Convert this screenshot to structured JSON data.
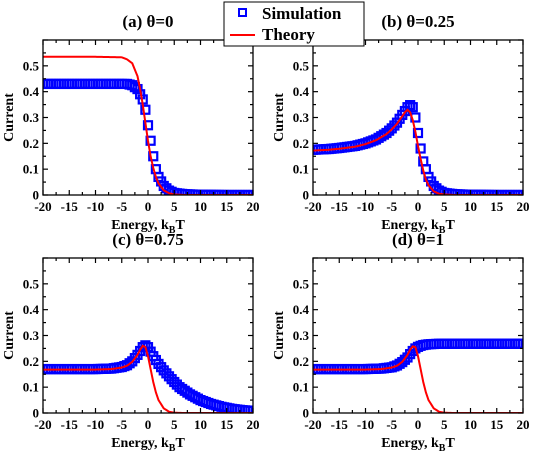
{
  "legend": {
    "entries": [
      {
        "label": "Simulation",
        "marker": "open-square",
        "color": "#0000ff"
      },
      {
        "label": "Theory",
        "marker": "line",
        "color": "#ff0000"
      }
    ]
  },
  "chart_data": [
    {
      "type": "line",
      "title": "(a) θ=0",
      "xlabel": "Energy, k",
      "xlabel_sub": "B",
      "xlabel_tail": "T",
      "ylabel": "Current",
      "xlim": [
        -20,
        20
      ],
      "ylim": [
        0,
        0.6
      ],
      "xticks": [
        -20,
        -15,
        -10,
        -5,
        0,
        5,
        10,
        15,
        20
      ],
      "yticks": [
        0,
        0.1,
        0.2,
        0.3,
        0.4,
        0.5
      ],
      "ytick_labels": [
        "0",
        "0.1",
        "0.2",
        "0.3",
        "0.4",
        "0.5"
      ],
      "series": [
        {
          "name": "Simulation",
          "color": "#0000ff",
          "x": [
            -20,
            -15,
            -10,
            -5,
            -4,
            -3,
            -2,
            -1,
            -0.5,
            0,
            0.5,
            1,
            1.5,
            2,
            3,
            4,
            5,
            7,
            10,
            15,
            20
          ],
          "y": [
            0.43,
            0.43,
            0.43,
            0.43,
            0.43,
            0.425,
            0.41,
            0.37,
            0.33,
            0.27,
            0.21,
            0.15,
            0.1,
            0.07,
            0.035,
            0.017,
            0.008,
            0.003,
            0.001,
            0,
            0
          ]
        },
        {
          "name": "Theory",
          "color": "#ff0000",
          "x": [
            -20,
            -15,
            -10,
            -5,
            -4,
            -3,
            -2,
            -1.5,
            -1,
            -0.5,
            0,
            0.5,
            1,
            1.5,
            2,
            3,
            4,
            5,
            7,
            10,
            15,
            20
          ],
          "y": [
            0.535,
            0.535,
            0.535,
            0.533,
            0.525,
            0.51,
            0.46,
            0.41,
            0.35,
            0.28,
            0.21,
            0.15,
            0.105,
            0.07,
            0.045,
            0.018,
            0.007,
            0.002,
            0,
            0,
            0,
            0
          ]
        }
      ]
    },
    {
      "type": "line",
      "title": "(b) θ=0.25",
      "xlabel": "Energy, k",
      "xlabel_sub": "B",
      "xlabel_tail": "T",
      "ylabel": "Current",
      "xlim": [
        -20,
        20
      ],
      "ylim": [
        0,
        0.6
      ],
      "xticks": [
        -20,
        -15,
        -10,
        -5,
        0,
        5,
        10,
        15,
        20
      ],
      "yticks": [
        0,
        0.1,
        0.2,
        0.3,
        0.4,
        0.5
      ],
      "ytick_labels": [
        "0",
        "0.1",
        "0.2",
        "0.3",
        "0.4",
        "0.5"
      ],
      "series": [
        {
          "name": "Simulation",
          "color": "#0000ff",
          "x": [
            -20,
            -17,
            -15,
            -12,
            -10,
            -8,
            -6,
            -5,
            -4,
            -3,
            -2,
            -1.5,
            -1,
            -0.5,
            0,
            0.5,
            1,
            2,
            3,
            4,
            5,
            7,
            10,
            15,
            20
          ],
          "y": [
            0.175,
            0.178,
            0.182,
            0.19,
            0.2,
            0.215,
            0.24,
            0.258,
            0.28,
            0.31,
            0.34,
            0.348,
            0.34,
            0.3,
            0.24,
            0.18,
            0.13,
            0.07,
            0.035,
            0.017,
            0.008,
            0.003,
            0.001,
            0,
            0
          ]
        },
        {
          "name": "Theory",
          "color": "#ff0000",
          "x": [
            -20,
            -17,
            -15,
            -12,
            -10,
            -8,
            -6,
            -5,
            -4,
            -3,
            -2.5,
            -2,
            -1.5,
            -1,
            -0.5,
            0,
            0.5,
            1,
            1.5,
            2,
            3,
            4,
            5,
            7,
            10,
            15,
            20
          ],
          "y": [
            0.172,
            0.175,
            0.179,
            0.187,
            0.197,
            0.212,
            0.236,
            0.254,
            0.276,
            0.305,
            0.32,
            0.33,
            0.32,
            0.29,
            0.245,
            0.19,
            0.14,
            0.095,
            0.06,
            0.038,
            0.014,
            0.005,
            0.002,
            0,
            0,
            0,
            0
          ]
        }
      ]
    },
    {
      "type": "line",
      "title": "(c) θ=0.75",
      "xlabel": "Energy, k",
      "xlabel_sub": "B",
      "xlabel_tail": "T",
      "ylabel": "Current",
      "xlim": [
        -20,
        20
      ],
      "ylim": [
        0,
        0.6
      ],
      "xticks": [
        -20,
        -15,
        -10,
        -5,
        0,
        5,
        10,
        15,
        20
      ],
      "yticks": [
        0,
        0.1,
        0.2,
        0.3,
        0.4,
        0.5
      ],
      "ytick_labels": [
        "0",
        "0.1",
        "0.2",
        "0.3",
        "0.4",
        "0.5"
      ],
      "series": [
        {
          "name": "Simulation",
          "color": "#0000ff",
          "x": [
            -20,
            -15,
            -10,
            -7,
            -5,
            -4,
            -3,
            -2,
            -1.5,
            -1,
            -0.5,
            0,
            1,
            2,
            3,
            4,
            5,
            6,
            8,
            10,
            12,
            14,
            16,
            18,
            20
          ],
          "y": [
            0.17,
            0.17,
            0.17,
            0.172,
            0.178,
            0.185,
            0.2,
            0.225,
            0.24,
            0.255,
            0.262,
            0.255,
            0.22,
            0.19,
            0.165,
            0.142,
            0.12,
            0.1,
            0.072,
            0.05,
            0.035,
            0.024,
            0.016,
            0.011,
            0.008
          ]
        },
        {
          "name": "Theory",
          "color": "#ff0000",
          "x": [
            -20,
            -15,
            -10,
            -7,
            -5,
            -4,
            -3,
            -2,
            -1.5,
            -1,
            -0.5,
            0,
            0.5,
            1,
            1.5,
            2,
            3,
            4,
            5,
            7,
            10,
            15,
            20
          ],
          "y": [
            0.168,
            0.168,
            0.168,
            0.17,
            0.176,
            0.183,
            0.198,
            0.225,
            0.245,
            0.26,
            0.255,
            0.22,
            0.17,
            0.12,
            0.08,
            0.05,
            0.018,
            0.005,
            0.001,
            0,
            0,
            0,
            0
          ]
        }
      ]
    },
    {
      "type": "line",
      "title": "(d) θ=1",
      "xlabel": "Energy, k",
      "xlabel_sub": "B",
      "xlabel_tail": "T",
      "ylabel": "Current",
      "xlim": [
        -20,
        20
      ],
      "ylim": [
        0,
        0.6
      ],
      "xticks": [
        -20,
        -15,
        -10,
        -5,
        0,
        5,
        10,
        15,
        20
      ],
      "yticks": [
        0,
        0.1,
        0.2,
        0.3,
        0.4,
        0.5
      ],
      "ytick_labels": [
        "0",
        "0.1",
        "0.2",
        "0.3",
        "0.4",
        "0.5"
      ],
      "series": [
        {
          "name": "Simulation",
          "color": "#0000ff",
          "x": [
            -20,
            -15,
            -10,
            -7,
            -5,
            -4,
            -3,
            -2,
            -1.5,
            -1,
            -0.5,
            0,
            0.5,
            1,
            2,
            3,
            4,
            5,
            7,
            10,
            15,
            20
          ],
          "y": [
            0.17,
            0.17,
            0.17,
            0.172,
            0.177,
            0.184,
            0.197,
            0.215,
            0.228,
            0.24,
            0.25,
            0.256,
            0.26,
            0.263,
            0.266,
            0.267,
            0.268,
            0.268,
            0.268,
            0.268,
            0.268,
            0.268
          ]
        },
        {
          "name": "Theory",
          "color": "#ff0000",
          "x": [
            -20,
            -15,
            -10,
            -7,
            -5,
            -4,
            -3,
            -2,
            -1.5,
            -1,
            -0.5,
            0,
            0.5,
            1,
            1.5,
            2,
            3,
            4,
            5,
            7,
            10,
            15,
            20
          ],
          "y": [
            0.168,
            0.168,
            0.168,
            0.17,
            0.176,
            0.183,
            0.198,
            0.225,
            0.245,
            0.258,
            0.255,
            0.22,
            0.17,
            0.12,
            0.08,
            0.05,
            0.018,
            0.005,
            0.001,
            0,
            0,
            0,
            0
          ]
        }
      ]
    }
  ]
}
